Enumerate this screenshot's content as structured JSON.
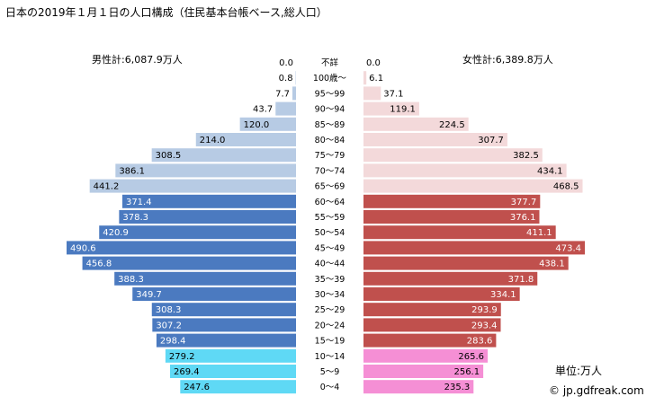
{
  "title": "日本の2019年１月１日の人口構成（住民基本台帳ベース,総人口）",
  "male_total_label": "男性計:6,087.9万人",
  "female_total_label": "女性計:6,389.8万人",
  "unit_label": "単位:万人",
  "credit": "© jp.gdfreak.com",
  "colors": {
    "male_senior": "#b7cbe4",
    "male_working": "#4b7ac0",
    "male_child": "#5fd9f5",
    "female_senior": "#f3d9da",
    "female_working": "#c0504d",
    "female_child": "#f58fd5"
  },
  "chart_data": {
    "type": "bar",
    "orientation": "horizontal-population-pyramid",
    "categories": [
      "不詳",
      "100歳～",
      "95～99",
      "90～94",
      "85～89",
      "80～84",
      "75～79",
      "70～74",
      "65～69",
      "60～64",
      "55～59",
      "50～54",
      "45～49",
      "40～44",
      "35～39",
      "30～34",
      "25～29",
      "20～24",
      "15～19",
      "10～14",
      "5～9",
      "0～4"
    ],
    "series": [
      {
        "name": "男性",
        "values": [
          0.0,
          0.8,
          7.7,
          43.7,
          120.0,
          214.0,
          308.5,
          386.1,
          441.2,
          371.4,
          378.3,
          420.9,
          490.6,
          456.8,
          388.3,
          349.7,
          308.3,
          307.2,
          298.4,
          279.2,
          269.4,
          247.6
        ]
      },
      {
        "name": "女性",
        "values": [
          0.0,
          6.1,
          37.1,
          119.1,
          224.5,
          307.7,
          382.5,
          434.1,
          468.5,
          377.7,
          376.1,
          411.1,
          473.4,
          438.1,
          371.8,
          334.1,
          293.9,
          293.4,
          283.6,
          265.6,
          256.1,
          235.3
        ]
      }
    ],
    "groups": {
      "senior": [
        "不詳",
        "100歳～",
        "95～99",
        "90～94",
        "85～89",
        "80～84",
        "75～79",
        "70～74",
        "65～69"
      ],
      "working": [
        "60～64",
        "55～59",
        "50～54",
        "45～49",
        "40～44",
        "35～39",
        "30～34",
        "25～29",
        "20～24",
        "15～19"
      ],
      "child": [
        "10～14",
        "5～9",
        "0～4"
      ]
    },
    "xlim": [
      0,
      500
    ]
  }
}
